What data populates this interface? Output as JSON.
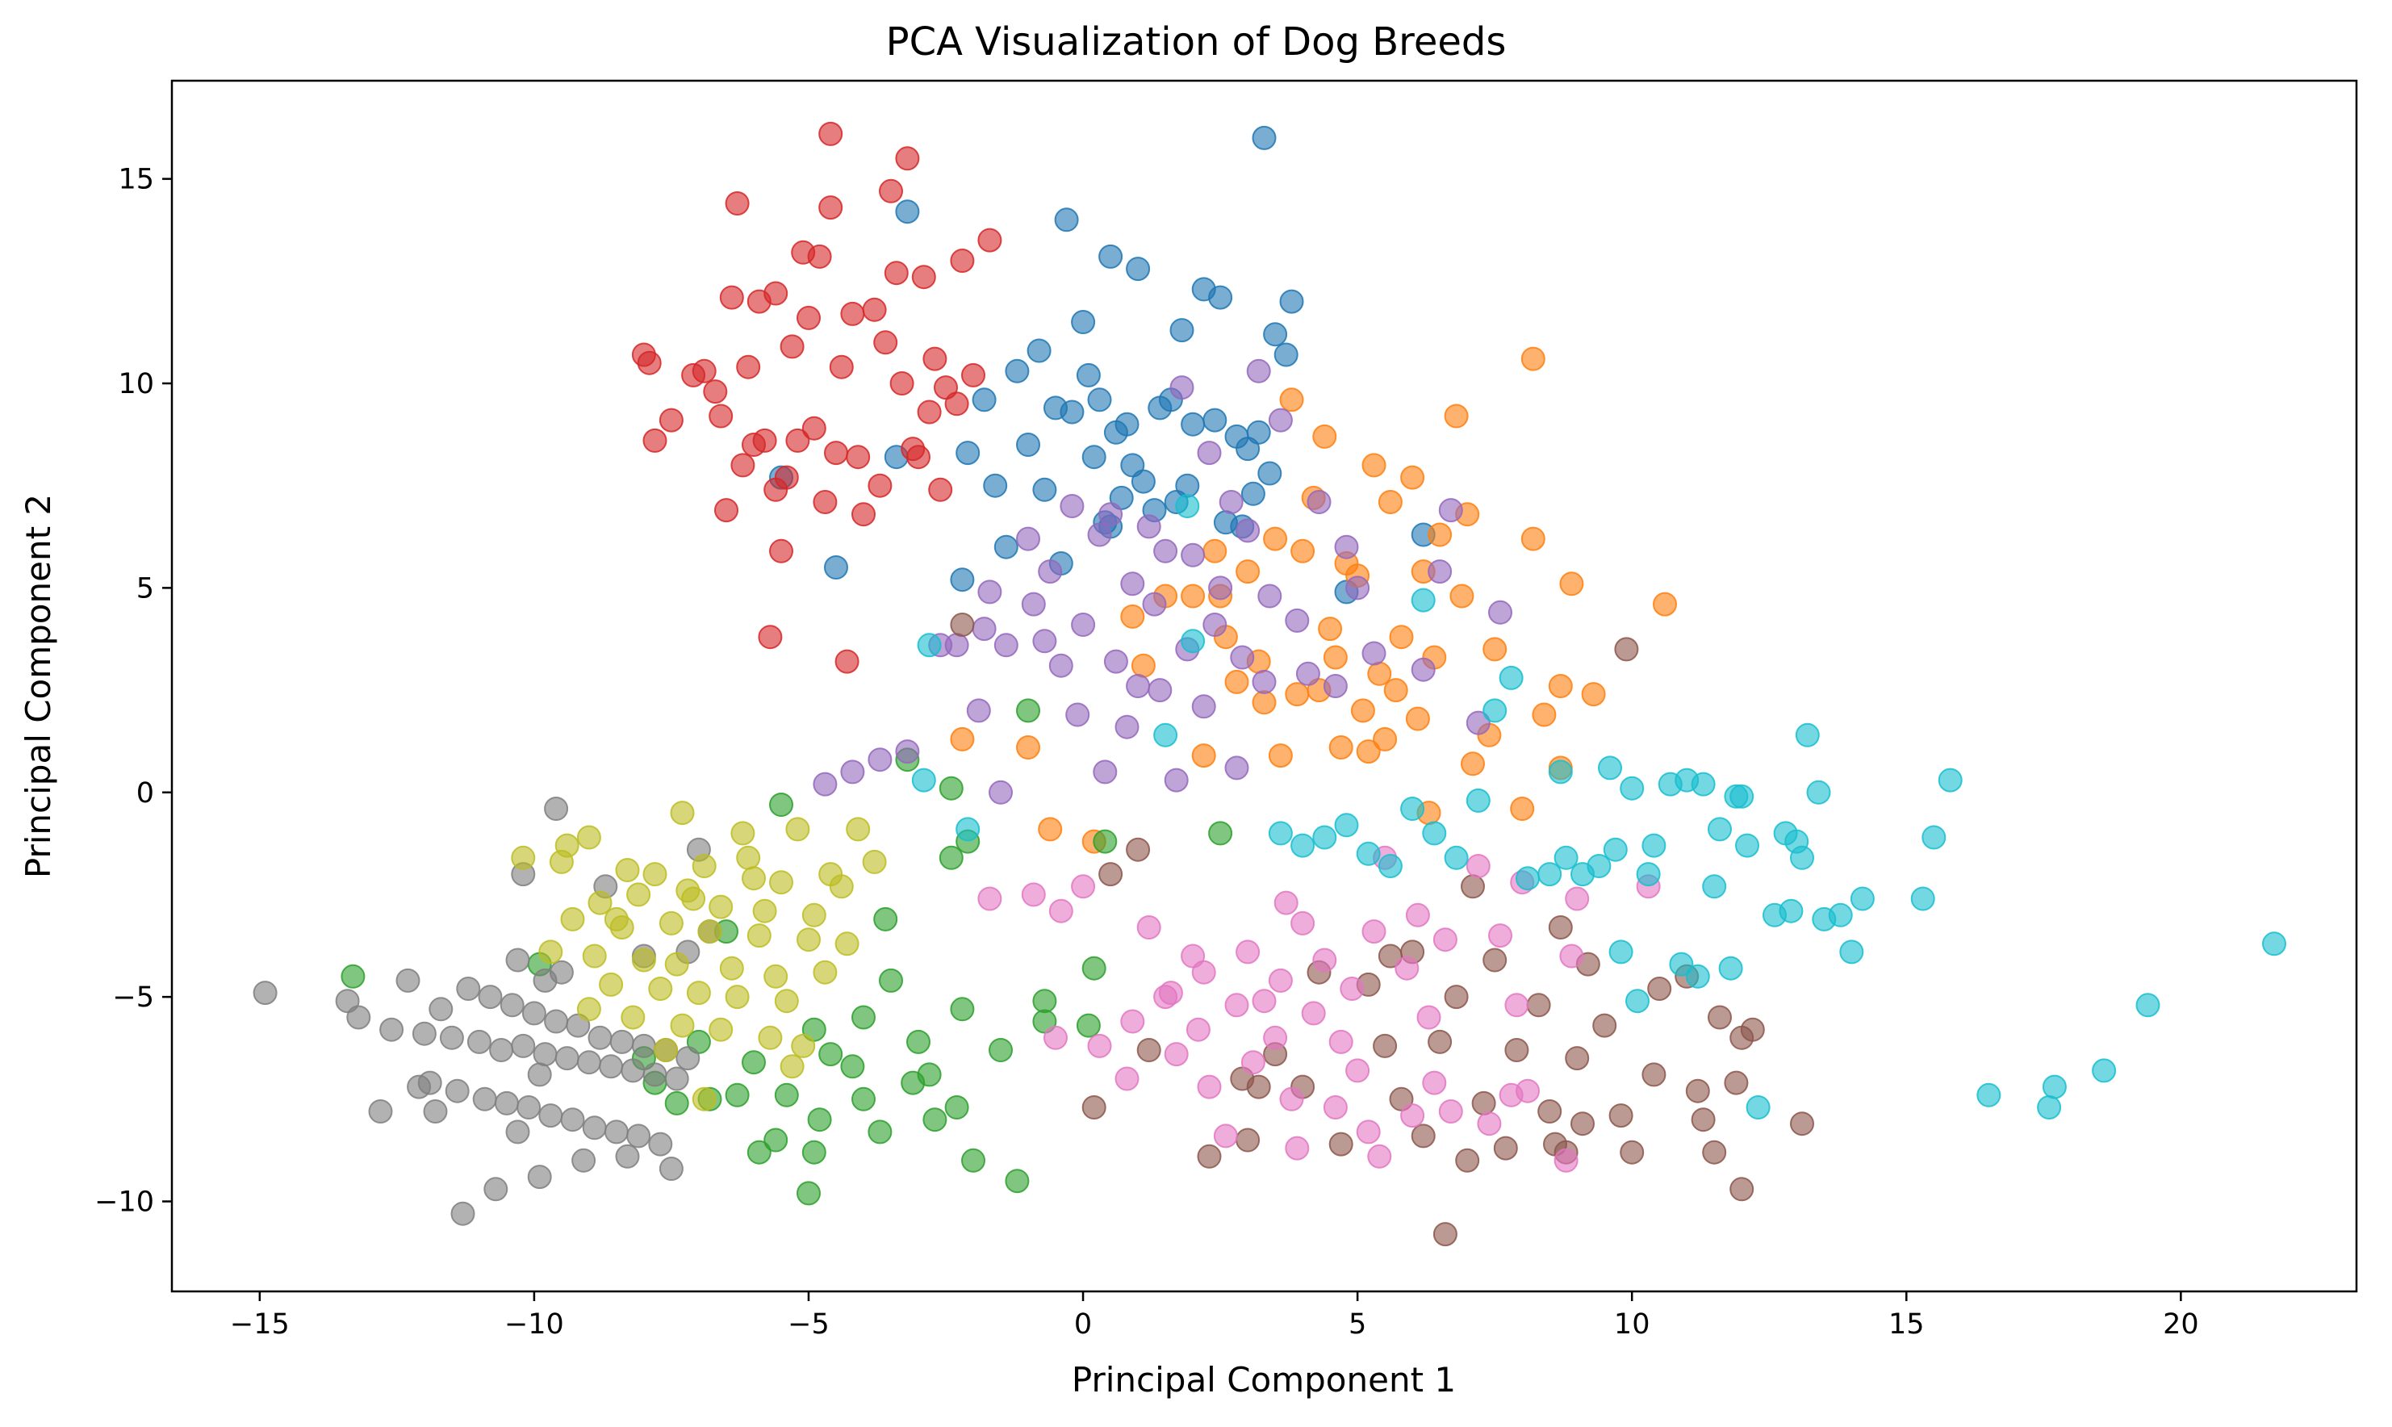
{
  "chart_data": {
    "type": "scatter",
    "title": "PCA Visualization of Dog Breeds",
    "xlabel": "Principal Component 1",
    "ylabel": "Principal Component 2",
    "xlim": [
      -16.6,
      23.2
    ],
    "ylim": [
      -12.2,
      17.4
    ],
    "xticks": [
      -15,
      -10,
      -5,
      0,
      5,
      10,
      15,
      20
    ],
    "yticks": [
      -10,
      -5,
      0,
      5,
      10,
      15
    ],
    "xtick_labels": [
      "−15",
      "−10",
      "−5",
      "0",
      "5",
      "10",
      "15",
      "20"
    ],
    "ytick_labels": [
      "−10",
      "−5",
      "0",
      "5",
      "10",
      "15"
    ],
    "grid": false,
    "legend": "none",
    "marker_alpha": 0.6,
    "series": [
      {
        "color": "#1f77b4",
        "x": [
          3.3,
          -0.3,
          -3.2,
          0.5,
          1.0,
          2.5,
          3.8,
          2.2,
          3.5,
          0.0,
          -0.8,
          1.8,
          3.7,
          0.1,
          0.3,
          1.4,
          -1.2,
          -0.5,
          0.8,
          1.6,
          2.4,
          3.2,
          -1.0,
          0.6,
          -0.2,
          2.0,
          3.0,
          -1.6,
          0.9,
          1.1,
          -0.7,
          2.8,
          -2.1,
          0.2,
          1.7,
          3.4,
          2.6,
          -1.4,
          0.4,
          1.3,
          -0.4,
          2.9,
          1.9,
          0.7,
          3.1,
          -2.2,
          6.2,
          4.8,
          -1.8,
          -4.5,
          -3.4,
          -5.5,
          0.5
        ],
        "y": [
          16.0,
          14.0,
          14.2,
          13.1,
          12.8,
          12.1,
          12.0,
          12.3,
          11.2,
          11.5,
          10.8,
          11.3,
          10.7,
          10.2,
          9.6,
          9.4,
          10.3,
          9.4,
          9.0,
          9.6,
          9.1,
          8.8,
          8.5,
          8.8,
          9.3,
          9.0,
          8.4,
          7.5,
          8.0,
          7.6,
          7.4,
          8.7,
          8.3,
          8.2,
          7.1,
          7.8,
          6.6,
          6.0,
          6.6,
          6.9,
          5.6,
          6.5,
          7.5,
          7.2,
          7.3,
          5.2,
          6.3,
          4.9,
          9.6,
          5.5,
          8.2,
          7.7,
          6.5
        ]
      },
      {
        "color": "#ff7f0e",
        "x": [
          8.2,
          6.8,
          3.8,
          4.4,
          5.3,
          6.0,
          7.0,
          4.2,
          5.6,
          6.5,
          8.2,
          8.9,
          3.5,
          4.0,
          4.8,
          2.4,
          3.0,
          5.0,
          6.2,
          6.9,
          2.0,
          1.5,
          4.5,
          5.8,
          7.5,
          8.7,
          9.3,
          10.6,
          3.2,
          4.6,
          5.4,
          6.4,
          2.8,
          3.9,
          4.3,
          5.1,
          6.1,
          1.1,
          0.9,
          2.6,
          3.3,
          5.5,
          8.4,
          2.2,
          3.6,
          4.7,
          5.2,
          7.1,
          0.2,
          -0.6,
          -2.2,
          -1.0,
          6.3,
          8.0,
          8.7,
          2.5,
          5.7,
          7.4
        ],
        "y": [
          10.6,
          9.2,
          9.6,
          8.7,
          8.0,
          7.7,
          6.8,
          7.2,
          7.1,
          6.3,
          6.2,
          5.1,
          6.2,
          5.9,
          5.6,
          5.9,
          5.4,
          5.3,
          5.4,
          4.8,
          4.8,
          4.8,
          4.0,
          3.8,
          3.5,
          2.6,
          2.4,
          4.6,
          3.2,
          3.3,
          2.9,
          3.3,
          2.7,
          2.4,
          2.5,
          2.0,
          1.8,
          3.1,
          4.3,
          3.8,
          2.2,
          1.3,
          1.9,
          0.9,
          0.9,
          1.1,
          1.0,
          0.7,
          -1.2,
          -0.9,
          1.3,
          1.1,
          -0.5,
          -0.4,
          0.6,
          4.8,
          2.5,
          1.4
        ]
      },
      {
        "color": "#2ca02c",
        "x": [
          -13.3,
          -9.9,
          -5.5,
          -3.2,
          -2.4,
          -1.0,
          0.2,
          -2.2,
          -3.5,
          -4.0,
          -4.9,
          -6.0,
          -7.0,
          -8.0,
          -2.8,
          -3.1,
          -2.7,
          -4.6,
          -5.4,
          -6.3,
          -4.0,
          -4.8,
          -3.7,
          -6.8,
          -7.4,
          -2.3,
          -5.6,
          -4.2,
          -3.0,
          -2.1,
          -0.7,
          -1.5,
          -0.7,
          0.1,
          -2.4,
          -3.6,
          -5.0,
          -5.9,
          -2.0,
          -1.2,
          2.5,
          0.4,
          -6.5,
          -7.8,
          -4.9
        ],
        "y": [
          -4.5,
          -4.2,
          -0.3,
          0.8,
          0.1,
          2.0,
          -4.3,
          -5.3,
          -4.6,
          -5.5,
          -5.8,
          -6.6,
          -6.1,
          -6.5,
          -6.9,
          -7.1,
          -8.0,
          -6.4,
          -7.4,
          -7.4,
          -7.5,
          -8.0,
          -8.3,
          -7.5,
          -7.6,
          -7.7,
          -8.5,
          -6.7,
          -6.1,
          -1.2,
          -5.1,
          -6.3,
          -5.6,
          -5.7,
          -1.6,
          -3.1,
          -9.8,
          -8.8,
          -9.0,
          -9.5,
          -1.0,
          -1.2,
          -3.4,
          -7.1,
          -8.8
        ]
      },
      {
        "color": "#d62728",
        "x": [
          -4.6,
          -3.2,
          -5.1,
          -3.5,
          -2.2,
          -1.7,
          -6.3,
          -4.8,
          -5.6,
          -3.8,
          -2.9,
          -7.9,
          -8.0,
          -6.9,
          -6.4,
          -5.9,
          -5.0,
          -4.2,
          -3.6,
          -2.7,
          -2.0,
          -6.1,
          -5.3,
          -4.4,
          -3.3,
          -2.5,
          -7.5,
          -6.6,
          -5.8,
          -4.9,
          -4.1,
          -3.0,
          -2.3,
          -6.7,
          -6.0,
          -5.2,
          -4.5,
          -3.7,
          -2.6,
          -6.2,
          -5.4,
          -4.7,
          -4.0,
          -3.1,
          -2.8,
          -5.7,
          -4.3,
          -6.5,
          -5.5,
          -7.1,
          -3.4,
          -4.6,
          -5.6,
          -7.8
        ],
        "y": [
          16.1,
          15.5,
          13.2,
          14.7,
          13.0,
          13.5,
          14.4,
          13.1,
          12.2,
          11.8,
          12.6,
          10.5,
          10.7,
          10.3,
          12.1,
          12.0,
          11.6,
          11.7,
          11.0,
          10.6,
          10.2,
          10.4,
          10.9,
          10.4,
          10.0,
          9.9,
          9.1,
          9.2,
          8.6,
          8.9,
          8.2,
          8.2,
          9.5,
          9.8,
          8.5,
          8.6,
          8.3,
          7.5,
          7.4,
          8.0,
          7.7,
          7.1,
          6.8,
          8.4,
          9.3,
          3.8,
          3.2,
          6.9,
          5.9,
          10.2,
          12.7,
          14.3,
          7.4,
          8.6
        ]
      },
      {
        "color": "#9467bd",
        "x": [
          1.8,
          3.2,
          3.6,
          2.3,
          0.5,
          -0.2,
          1.2,
          2.7,
          -1.0,
          0.3,
          1.5,
          -0.6,
          2.0,
          3.0,
          -1.7,
          -0.9,
          0.0,
          0.9,
          2.5,
          3.4,
          -2.3,
          -1.4,
          -0.4,
          0.6,
          1.9,
          2.9,
          4.1,
          -1.9,
          -0.1,
          1.0,
          2.2,
          3.3,
          5.0,
          6.5,
          -3.2,
          -3.7,
          -4.2,
          -4.7,
          -1.5,
          0.4,
          1.7,
          2.8,
          4.6,
          6.2,
          7.2,
          7.6,
          5.3,
          4.3,
          -0.7,
          1.3,
          2.4,
          -2.6,
          0.8,
          1.4,
          -1.8,
          3.9,
          4.8,
          6.7
        ],
        "y": [
          9.9,
          10.3,
          9.1,
          8.3,
          6.8,
          7.0,
          6.5,
          7.1,
          6.2,
          6.3,
          5.9,
          5.4,
          5.8,
          6.4,
          4.9,
          4.6,
          4.1,
          5.1,
          5.0,
          4.8,
          3.6,
          3.6,
          3.1,
          3.2,
          3.5,
          3.3,
          2.9,
          2.0,
          1.9,
          2.6,
          2.1,
          2.7,
          5.0,
          5.4,
          1.0,
          0.8,
          0.5,
          0.2,
          0.0,
          0.5,
          0.3,
          0.6,
          2.6,
          3.0,
          1.7,
          4.4,
          3.4,
          7.1,
          3.7,
          4.6,
          4.1,
          3.6,
          1.6,
          2.5,
          4.0,
          4.2,
          6.0,
          6.9
        ]
      },
      {
        "color": "#8c564b",
        "x": [
          9.9,
          7.1,
          8.7,
          10.5,
          11.6,
          12.2,
          6.0,
          7.5,
          9.2,
          11.0,
          4.3,
          5.2,
          6.8,
          8.3,
          9.5,
          12.0,
          3.5,
          5.5,
          6.5,
          7.9,
          9.0,
          10.4,
          11.9,
          2.9,
          4.0,
          5.8,
          7.3,
          8.5,
          9.8,
          11.3,
          13.1,
          3.0,
          4.7,
          6.2,
          7.7,
          8.8,
          10.0,
          11.5,
          2.3,
          6.6,
          7.0,
          8.6,
          12.0,
          0.2,
          1.2,
          -2.2,
          0.5,
          1.0,
          5.6,
          3.2,
          11.2,
          9.1
        ],
        "y": [
          3.5,
          -2.3,
          -3.3,
          -4.8,
          -5.5,
          -5.8,
          -3.9,
          -4.1,
          -4.2,
          -4.5,
          -4.4,
          -4.7,
          -5.0,
          -5.2,
          -5.7,
          -6.0,
          -6.4,
          -6.2,
          -6.1,
          -6.3,
          -6.5,
          -6.9,
          -7.1,
          -7.0,
          -7.2,
          -7.5,
          -7.6,
          -7.8,
          -7.9,
          -8.0,
          -8.1,
          -8.5,
          -8.6,
          -8.4,
          -8.7,
          -8.8,
          -8.8,
          -8.8,
          -8.9,
          -10.8,
          -9.0,
          -8.6,
          -9.7,
          -7.7,
          -6.3,
          4.1,
          -2.0,
          -1.4,
          -4.0,
          -7.2,
          -7.3,
          -8.1
        ],
        "type_note": ""
      },
      {
        "color": "#e377c2",
        "x": [
          5.5,
          7.2,
          8.0,
          9.0,
          10.3,
          6.1,
          7.6,
          8.9,
          4.0,
          5.3,
          6.6,
          3.0,
          4.4,
          5.9,
          2.2,
          3.6,
          4.9,
          1.5,
          2.8,
          4.2,
          0.9,
          2.1,
          3.5,
          0.3,
          1.7,
          3.1,
          -0.5,
          0.8,
          2.3,
          5.0,
          6.4,
          7.8,
          4.6,
          6.0,
          7.4,
          3.8,
          5.2,
          6.7,
          8.1,
          2.6,
          3.9,
          5.4,
          0.0,
          -0.9,
          -1.7,
          1.2,
          2.0,
          3.3,
          4.7,
          6.3,
          7.9,
          8.8,
          -0.4,
          1.6,
          3.7
        ],
        "y": [
          -1.6,
          -1.8,
          -2.2,
          -2.6,
          -2.3,
          -3.0,
          -3.5,
          -4.0,
          -3.2,
          -3.4,
          -3.6,
          -3.9,
          -4.1,
          -4.3,
          -4.4,
          -4.6,
          -4.8,
          -5.0,
          -5.2,
          -5.4,
          -5.6,
          -5.8,
          -6.0,
          -6.2,
          -6.4,
          -6.6,
          -6.0,
          -7.0,
          -7.2,
          -6.8,
          -7.1,
          -7.4,
          -7.7,
          -7.9,
          -8.1,
          -7.5,
          -8.3,
          -7.8,
          -7.3,
          -8.4,
          -8.7,
          -8.9,
          -2.3,
          -2.5,
          -2.6,
          -3.3,
          -4.0,
          -5.1,
          -6.1,
          -5.5,
          -5.2,
          -9.0,
          -2.9,
          -4.9,
          -2.7
        ]
      },
      {
        "color": "#7f7f7f",
        "x": [
          -14.9,
          -13.2,
          -12.6,
          -12.0,
          -11.5,
          -11.0,
          -10.6,
          -10.2,
          -9.8,
          -9.4,
          -9.0,
          -8.6,
          -8.2,
          -7.8,
          -7.4,
          -13.4,
          -12.3,
          -11.7,
          -11.2,
          -10.8,
          -10.4,
          -10.0,
          -9.6,
          -9.2,
          -8.8,
          -8.4,
          -8.0,
          -7.6,
          -7.2,
          -12.8,
          -11.9,
          -11.4,
          -10.9,
          -10.5,
          -10.1,
          -9.7,
          -9.3,
          -8.9,
          -8.5,
          -8.1,
          -7.7,
          -11.8,
          -10.7,
          -9.9,
          -9.1,
          -8.3,
          -7.5,
          -7.0,
          -10.3,
          -9.5,
          -11.3,
          -10.2,
          -9.6,
          -12.1,
          -9.8,
          -8.7,
          -8.0,
          -7.2,
          -6.8,
          -9.9,
          -10.3
        ],
        "y": [
          -4.9,
          -5.5,
          -5.8,
          -5.9,
          -6.0,
          -6.1,
          -6.3,
          -6.2,
          -6.4,
          -6.5,
          -6.6,
          -6.7,
          -6.8,
          -6.9,
          -7.0,
          -5.1,
          -4.6,
          -5.3,
          -4.8,
          -5.0,
          -5.2,
          -5.4,
          -5.6,
          -5.7,
          -6.0,
          -6.1,
          -6.2,
          -6.3,
          -6.5,
          -7.8,
          -7.1,
          -7.3,
          -7.5,
          -7.6,
          -7.7,
          -7.9,
          -8.0,
          -8.2,
          -8.3,
          -8.4,
          -8.6,
          -7.8,
          -9.7,
          -9.4,
          -9.0,
          -8.9,
          -9.2,
          -1.4,
          -4.1,
          -4.4,
          -10.3,
          -2.0,
          -0.4,
          -7.2,
          -4.6,
          -2.3,
          -4.0,
          -3.9,
          -3.4,
          -6.9,
          -8.3
        ]
      },
      {
        "color": "#bcbd22",
        "x": [
          -9.0,
          -7.3,
          -6.2,
          -5.2,
          -4.1,
          -9.5,
          -8.3,
          -7.8,
          -6.9,
          -6.0,
          -5.5,
          -4.6,
          -8.8,
          -8.1,
          -7.1,
          -6.6,
          -5.8,
          -4.9,
          -9.3,
          -8.4,
          -7.5,
          -6.8,
          -5.9,
          -5.0,
          -4.3,
          -9.7,
          -8.9,
          -8.0,
          -7.4,
          -6.4,
          -5.6,
          -4.7,
          -8.6,
          -7.7,
          -7.0,
          -6.3,
          -5.4,
          -9.0,
          -8.2,
          -7.3,
          -6.6,
          -5.7,
          -7.6,
          -6.9,
          -5.3,
          -5.1,
          -4.4,
          -3.8,
          -7.2,
          -6.1,
          -10.2,
          -9.4,
          -8.5
        ],
        "y": [
          -1.1,
          -0.5,
          -1.0,
          -0.9,
          -0.9,
          -1.7,
          -1.9,
          -2.0,
          -1.8,
          -2.1,
          -2.2,
          -2.0,
          -2.7,
          -2.5,
          -2.6,
          -2.8,
          -2.9,
          -3.0,
          -3.1,
          -3.3,
          -3.2,
          -3.4,
          -3.5,
          -3.6,
          -3.7,
          -3.9,
          -4.0,
          -4.1,
          -4.2,
          -4.3,
          -4.5,
          -4.4,
          -4.7,
          -4.8,
          -4.9,
          -5.0,
          -5.1,
          -5.3,
          -5.5,
          -5.7,
          -5.8,
          -6.0,
          -6.3,
          -7.5,
          -6.7,
          -6.2,
          -2.3,
          -1.7,
          -2.4,
          -1.6,
          -1.6,
          -1.3,
          -3.1
        ]
      },
      {
        "color": "#17becf",
        "x": [
          21.7,
          19.4,
          18.6,
          17.7,
          17.6,
          16.5,
          15.8,
          15.5,
          15.3,
          14.2,
          13.8,
          13.5,
          13.4,
          13.2,
          13.0,
          12.8,
          12.6,
          12.1,
          11.9,
          11.6,
          11.3,
          11.0,
          10.7,
          10.4,
          10.0,
          9.7,
          9.4,
          9.1,
          8.8,
          8.5,
          8.1,
          7.8,
          7.5,
          7.2,
          6.8,
          6.4,
          6.0,
          5.6,
          5.2,
          4.8,
          4.4,
          4.0,
          3.6,
          12.9,
          11.8,
          11.2,
          10.9,
          10.1,
          9.8,
          12.3,
          13.1,
          14.0,
          11.5,
          10.3,
          9.6,
          8.7,
          12.0,
          1.9,
          1.5,
          2.0,
          -2.9,
          -2.8,
          -2.1,
          6.2
        ],
        "y": [
          -3.7,
          -5.2,
          -6.8,
          -7.2,
          -7.7,
          -7.4,
          0.3,
          -1.1,
          -2.6,
          -2.6,
          -3.0,
          -3.1,
          0.0,
          1.4,
          -1.2,
          -1.0,
          -3.0,
          -1.3,
          -0.1,
          -0.9,
          0.2,
          0.3,
          0.2,
          -1.3,
          0.1,
          -1.4,
          -1.8,
          -2.0,
          -1.6,
          -2.0,
          -2.1,
          2.8,
          2.0,
          -0.2,
          -1.6,
          -1.0,
          -0.4,
          -1.8,
          -1.5,
          -0.8,
          -1.1,
          -1.3,
          -1.0,
          -2.9,
          -4.3,
          -4.5,
          -4.2,
          -5.1,
          -3.9,
          -7.7,
          -1.6,
          -3.9,
          -2.3,
          -2.0,
          0.6,
          0.5,
          -0.1,
          7.0,
          1.4,
          3.7,
          0.3,
          3.6,
          -0.9,
          4.7
        ]
      }
    ]
  }
}
